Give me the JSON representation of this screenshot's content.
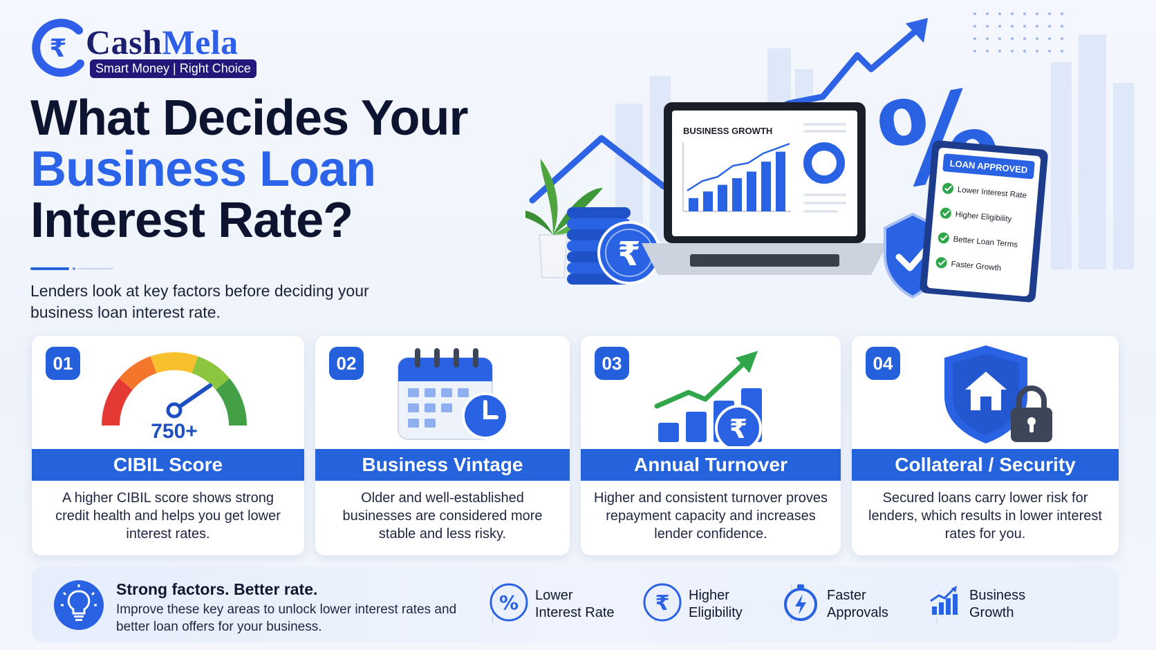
{
  "brand": {
    "name_part1": "Cash",
    "name_part2": "Mela",
    "tagline": "Smart Money | Right Choice",
    "logo_glyph": "₹"
  },
  "headline": {
    "line1": "What Decides Your",
    "line2": "Business Loan",
    "line3": "Interest Rate?"
  },
  "subtitle": "Lenders look at key factors before deciding your business loan interest rate.",
  "hero": {
    "laptop_title": "BUSINESS GROWTH",
    "coin_glyph": "₹",
    "percent_glyph": "%",
    "clipboard_title": "LOAN APPROVED",
    "clipboard_items": [
      "Lower Interest Rate",
      "Higher Eligibility",
      "Better Loan Terms",
      "Faster Growth"
    ],
    "bar_levels": [
      0.2,
      0.3,
      0.4,
      0.5,
      0.6,
      0.75,
      0.9
    ]
  },
  "factors": [
    {
      "number": "01",
      "title": "CIBIL Score",
      "description": "A higher CIBIL score shows strong credit health and helps you get lower interest rates.",
      "gauge_value": "750+",
      "icon": "gauge-icon"
    },
    {
      "number": "02",
      "title": "Business Vintage",
      "description": "Older and well-established businesses are considered more stable and less risky.",
      "icon": "calendar-clock-icon"
    },
    {
      "number": "03",
      "title": "Annual Turnover",
      "description": "Higher and consistent turnover proves repayment capacity and increases lender confidence.",
      "icon": "turnover-chart-icon"
    },
    {
      "number": "04",
      "title": "Collateral / Security",
      "description": "Secured loans carry lower risk for lenders, which results in lower interest rates for you.",
      "icon": "shield-house-lock-icon"
    }
  ],
  "footer": {
    "title": "Strong factors. Better rate.",
    "text": "Improve these key areas to unlock lower interest rates and better loan offers for your business.",
    "benefits": [
      {
        "line1": "Lower",
        "line2": "Interest Rate",
        "icon": "percent-icon"
      },
      {
        "line1": "Higher",
        "line2": "Eligibility",
        "icon": "rupee-icon"
      },
      {
        "line1": "Faster",
        "line2": "Approvals",
        "icon": "stopwatch-icon"
      },
      {
        "line1": "Business",
        "line2": "Growth",
        "icon": "growth-chart-icon"
      }
    ]
  },
  "colors": {
    "primary": "#2563dc",
    "navy": "#1c1f70",
    "dark_text": "#0c1430"
  }
}
